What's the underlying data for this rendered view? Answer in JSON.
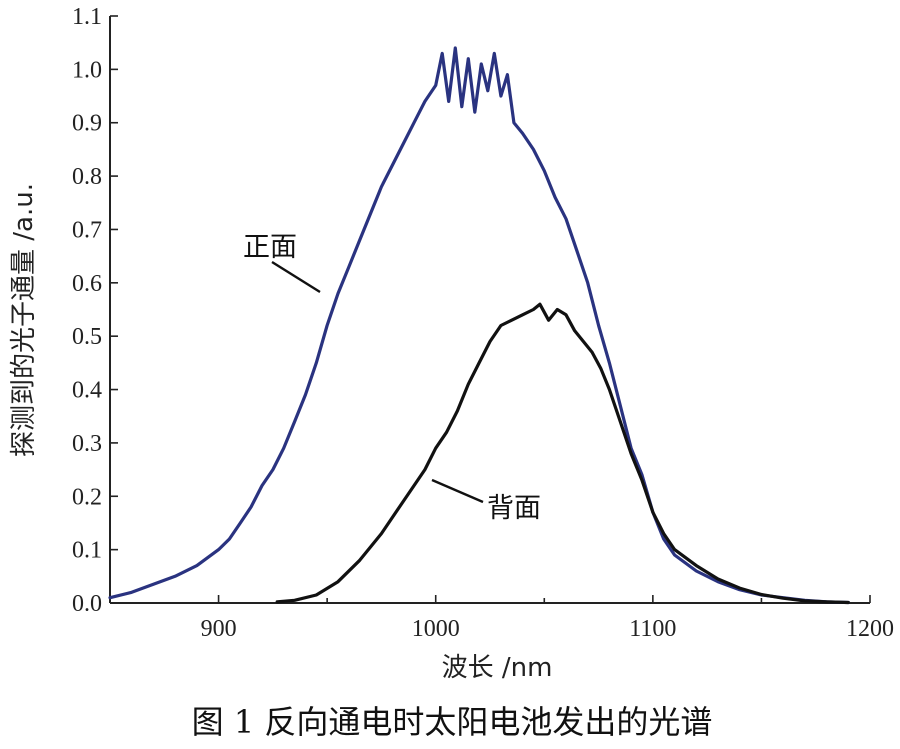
{
  "chart_data": {
    "type": "line",
    "title": "",
    "caption": "图 1  反向通电时太阳电池发出的光谱",
    "xlabel": "波长 /nm",
    "ylabel": "探测到的光子通量 /a.u.",
    "xlim": [
      850,
      1200
    ],
    "ylim": [
      0.0,
      1.1
    ],
    "xticks": [
      "900",
      "1000",
      "1100",
      "1200"
    ],
    "yticks": [
      "0.0",
      "0.1",
      "0.2",
      "0.3",
      "0.4",
      "0.5",
      "0.6",
      "0.7",
      "0.8",
      "0.9",
      "1.0",
      "1.1"
    ],
    "grid": false,
    "annotations": [
      "正面",
      "背面"
    ],
    "series": [
      {
        "name": "正面",
        "color": "#2a3380",
        "x": [
          850,
          860,
          870,
          880,
          890,
          900,
          905,
          910,
          915,
          920,
          925,
          930,
          935,
          940,
          945,
          950,
          955,
          960,
          965,
          970,
          975,
          980,
          985,
          990,
          995,
          1000,
          1003,
          1006,
          1009,
          1012,
          1015,
          1018,
          1021,
          1024,
          1027,
          1030,
          1033,
          1036,
          1040,
          1045,
          1050,
          1055,
          1060,
          1065,
          1070,
          1075,
          1080,
          1085,
          1090,
          1095,
          1100,
          1105,
          1110,
          1120,
          1130,
          1140,
          1150,
          1160,
          1170,
          1180,
          1190
        ],
        "y": [
          0.01,
          0.02,
          0.035,
          0.05,
          0.07,
          0.1,
          0.12,
          0.15,
          0.18,
          0.22,
          0.25,
          0.29,
          0.34,
          0.39,
          0.45,
          0.52,
          0.58,
          0.63,
          0.68,
          0.73,
          0.78,
          0.82,
          0.86,
          0.9,
          0.94,
          0.97,
          1.03,
          0.94,
          1.04,
          0.93,
          1.02,
          0.92,
          1.01,
          0.96,
          1.03,
          0.95,
          0.99,
          0.9,
          0.88,
          0.85,
          0.81,
          0.76,
          0.72,
          0.66,
          0.6,
          0.52,
          0.45,
          0.37,
          0.29,
          0.24,
          0.17,
          0.12,
          0.09,
          0.06,
          0.04,
          0.025,
          0.015,
          0.01,
          0.005,
          0.002,
          0.001
        ]
      },
      {
        "name": "背面",
        "color": "#111111",
        "x": [
          927,
          935,
          945,
          955,
          965,
          975,
          985,
          995,
          1000,
          1005,
          1010,
          1015,
          1020,
          1025,
          1030,
          1035,
          1040,
          1045,
          1048,
          1052,
          1056,
          1060,
          1064,
          1068,
          1072,
          1076,
          1080,
          1085,
          1090,
          1095,
          1100,
          1105,
          1110,
          1120,
          1130,
          1140,
          1150,
          1160,
          1170,
          1180,
          1190
        ],
        "y": [
          0.002,
          0.005,
          0.015,
          0.04,
          0.08,
          0.13,
          0.19,
          0.25,
          0.29,
          0.32,
          0.36,
          0.41,
          0.45,
          0.49,
          0.52,
          0.53,
          0.54,
          0.55,
          0.56,
          0.53,
          0.55,
          0.54,
          0.51,
          0.49,
          0.47,
          0.44,
          0.4,
          0.34,
          0.28,
          0.23,
          0.17,
          0.13,
          0.1,
          0.07,
          0.045,
          0.028,
          0.016,
          0.009,
          0.004,
          0.002,
          0.001
        ]
      }
    ]
  }
}
